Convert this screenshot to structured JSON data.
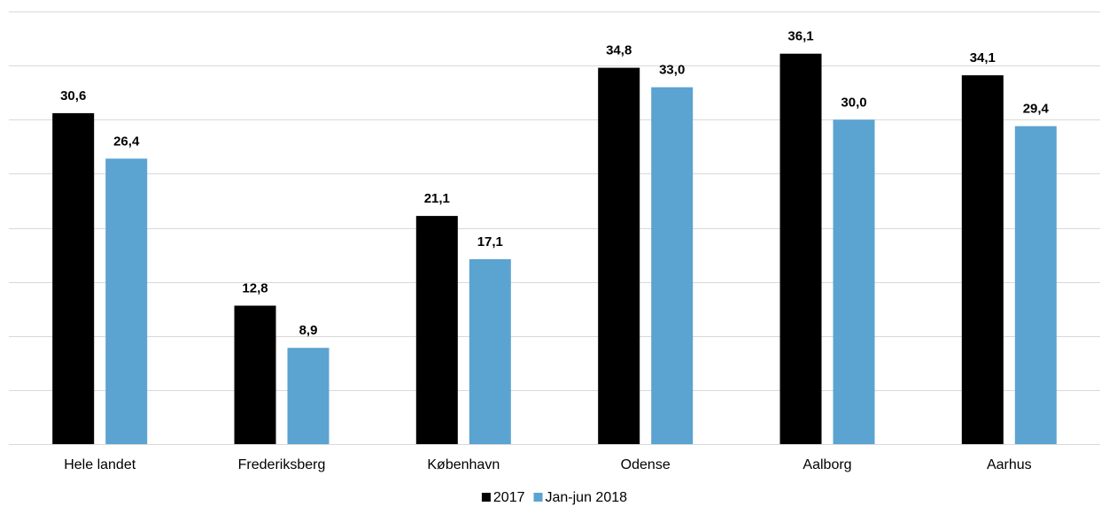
{
  "chart_data": {
    "type": "bar",
    "title": "",
    "xlabel": "",
    "ylabel": "",
    "ylim": [
      0,
      40
    ],
    "grid": true,
    "legend_placement": "bottom-center",
    "categories": [
      "Hele landet",
      "Frederiksberg",
      "København",
      "Odense",
      "Aalborg",
      "Aarhus"
    ],
    "series": [
      {
        "name": "2017",
        "color": "#000000",
        "values": [
          30.6,
          12.8,
          21.1,
          34.8,
          36.1,
          34.1
        ],
        "labels": [
          "30,6",
          "12,8",
          "21,1",
          "34,8",
          "36,1",
          "34,1"
        ]
      },
      {
        "name": "Jan-jun 2018",
        "color": "#5ba3d1",
        "values": [
          26.4,
          8.9,
          17.1,
          33.0,
          30.0,
          29.4
        ],
        "labels": [
          "26,4",
          "8,9",
          "17,1",
          "33,0",
          "30,0",
          "29,4"
        ]
      }
    ]
  }
}
